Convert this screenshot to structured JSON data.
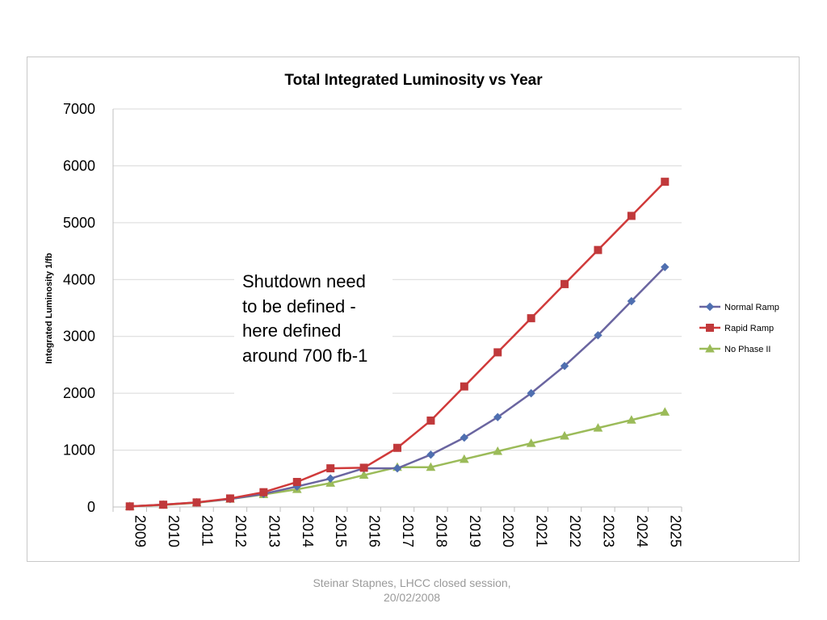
{
  "chart_data": {
    "type": "line",
    "title": "Total Integrated Luminosity  vs Year",
    "xlabel": "",
    "ylabel": "Integrated Luminosity 1/fb",
    "ylim": [
      0,
      7000
    ],
    "yticks": [
      "0",
      "1000",
      "2000",
      "3000",
      "4000",
      "5000",
      "6000",
      "7000"
    ],
    "grid": true,
    "legend_position": "right",
    "categories": [
      "2009",
      "2010",
      "2011",
      "2012",
      "2013",
      "2014",
      "2015",
      "2016",
      "2017",
      "2018",
      "2019",
      "2020",
      "2021",
      "2022",
      "2023",
      "2024",
      "2025"
    ],
    "series": [
      {
        "name": "Normal Ramp",
        "color": "#4f6fb0",
        "line_color": "#6a65a0",
        "marker": "diamond",
        "values": [
          10,
          40,
          80,
          140,
          230,
          360,
          500,
          680,
          680,
          920,
          1220,
          1580,
          2000,
          2480,
          3020,
          3620,
          4220
        ]
      },
      {
        "name": "Rapid Ramp",
        "color": "#c0393b",
        "line_color": "#d03a3a",
        "marker": "square",
        "values": [
          10,
          40,
          80,
          150,
          260,
          440,
          680,
          690,
          1040,
          1520,
          2120,
          2720,
          3320,
          3920,
          4520,
          5120,
          5720
        ]
      },
      {
        "name": "No Phase II",
        "color": "#9bbb59",
        "line_color": "#9bbb59",
        "marker": "triangle",
        "values": [
          10,
          35,
          75,
          140,
          220,
          310,
          420,
          560,
          700,
          700,
          840,
          980,
          1120,
          1250,
          1390,
          1530,
          1670
        ]
      }
    ],
    "annotation": "Shutdown need to be defined - here defined around 700 fb-1"
  },
  "footer": {
    "line1": "Steinar Stapnes, LHCC closed session,",
    "line2": "20/02/2008"
  }
}
